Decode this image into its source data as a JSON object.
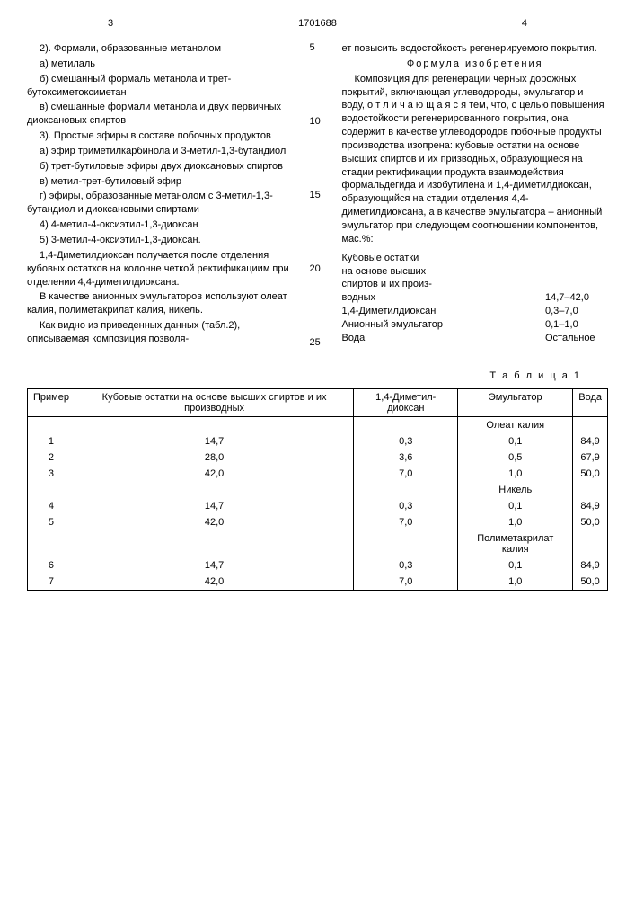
{
  "header": {
    "left_page": "3",
    "doc_number": "1701688",
    "right_page": "4"
  },
  "left_col": {
    "l1": "2). Формали, образованные метанолом",
    "l2": "а) метилаль",
    "l3": "б) смешанный формаль метанола и трет-бутоксиметоксиметан",
    "l4": "в) смешанные формали метанола и двух первичных диоксановых спиртов",
    "l5": "3). Простые эфиры в составе побочных продуктов",
    "l6": "а) эфир триметилкарбинола и 3-метил-1,3-бутандиол",
    "l7": "б) трет-бутиловые эфиры двух диоксановых спиртов",
    "l8": "в) метил-трет-бутиловый эфир",
    "l9": "г) эфиры, образованные метанолом с 3-метил-1,3-бутандиол и диоксановыми спиртами",
    "l10": "4) 4-метил-4-оксиэтил-1,3-диоксан",
    "l11": "5) 3-метил-4-оксиэтил-1,3-диоксан.",
    "l12": "1,4-Диметилдиоксан получается после отделения кубовых остатков на колонне четкой ректификациим при отделении 4,4-диметилдиоксана.",
    "l13": "В качестве анионных эмульгаторов используют олеат калия, полиметакрилат калия, никель.",
    "l14": "Как видно из приведенных данных (табл.2), описываемая композиция позволя-"
  },
  "line_nums": {
    "n5": "5",
    "n10": "10",
    "n15": "15",
    "n20": "20",
    "n25": "25"
  },
  "right_col": {
    "r1": "ет повысить водостойкость регенерируемого покрытия.",
    "claim_title": "Формула изобретения",
    "r2": "Композиция для регенерации черных дорожных покрытий, включающая углеводороды, эмульгатор и воду, о т л и ч а ю щ а я с я тем, что, с целью повышения водостойкости регенерированного покрытия, она содержит в качестве углеводородов побочные продукты производства изопрена: кубовые остатки на основе высших спиртов и их призводных, образующиеся на стадии ректификации продукта взаимодействия формальдегида и изобутилена и 1,4-диметилдиоксан, образующийся на стадии отделения 4,4-диметилдиоксана, а в качестве эмульгатора – анионный эмульгатор при следующем соотношении компонентов, мас.%:",
    "ratio": {
      "row1_label": "Кубовые остатки",
      "row1b_label": "на основе высших",
      "row1c_label": "спиртов и их произ-",
      "row1d_label": "водных",
      "row1_val": "14,7–42,0",
      "row2_label": "1,4-Диметилдиоксан",
      "row2_val": "0,3–7,0",
      "row3_label": "Анионный эмульгатор",
      "row3_val": "0,1–1,0",
      "row4_label": "Вода",
      "row4_val": "Остальное"
    }
  },
  "table": {
    "caption": "Т а б л и ц а 1",
    "headers": {
      "h1": "Пример",
      "h2": "Кубовые остатки на основе высших спиртов и их производных",
      "h3": "1,4-Диметил-диоксан",
      "h4": "Эмульгатор",
      "h5": "Вода"
    },
    "sub1": "Олеат калия",
    "sub2": "Никель",
    "sub3": "Полиметакрилат калия",
    "rows": [
      {
        "n": "1",
        "a": "14,7",
        "b": "0,3",
        "c": "0,1",
        "d": "84,9"
      },
      {
        "n": "2",
        "a": "28,0",
        "b": "3,6",
        "c": "0,5",
        "d": "67,9"
      },
      {
        "n": "3",
        "a": "42,0",
        "b": "7,0",
        "c": "1,0",
        "d": "50,0"
      },
      {
        "n": "4",
        "a": "14,7",
        "b": "0,3",
        "c": "0,1",
        "d": "84,9"
      },
      {
        "n": "5",
        "a": "42,0",
        "b": "7,0",
        "c": "1,0",
        "d": "50,0"
      },
      {
        "n": "6",
        "a": "14,7",
        "b": "0,3",
        "c": "0,1",
        "d": "84,9"
      },
      {
        "n": "7",
        "a": "42,0",
        "b": "7,0",
        "c": "1,0",
        "d": "50,0"
      }
    ]
  }
}
